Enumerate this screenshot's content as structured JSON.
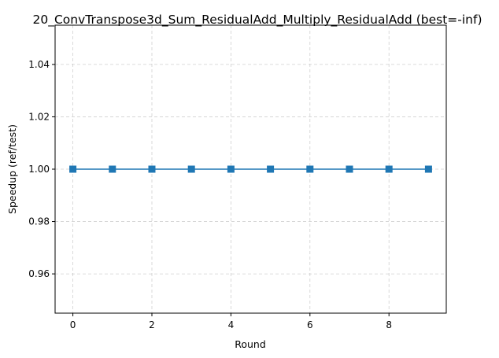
{
  "chart_data": {
    "type": "line",
    "title": "20_ConvTranspose3d_Sum_ResidualAdd_Multiply_ResidualAdd (best=-inf)",
    "xlabel": "Round",
    "ylabel": "Speedup (ref/test)",
    "x": [
      0,
      1,
      2,
      3,
      4,
      5,
      6,
      7,
      8,
      9
    ],
    "series": [
      {
        "values": [
          1.0,
          1.0,
          1.0,
          1.0,
          1.0,
          1.0,
          1.0,
          1.0,
          1.0,
          1.0
        ]
      }
    ],
    "xlim": [
      -0.45,
      9.45
    ],
    "ylim": [
      0.945,
      1.055
    ],
    "xticks": [
      0,
      2,
      4,
      6,
      8
    ],
    "xtick_labels": [
      "0",
      "2",
      "4",
      "6",
      "8"
    ],
    "yticks": [
      0.96,
      0.98,
      1.0,
      1.02,
      1.04
    ],
    "ytick_labels": [
      "0.96",
      "0.98",
      "1.00",
      "1.02",
      "1.04"
    ],
    "grid": true,
    "line_color": "#1f77b4",
    "marker": "square"
  }
}
